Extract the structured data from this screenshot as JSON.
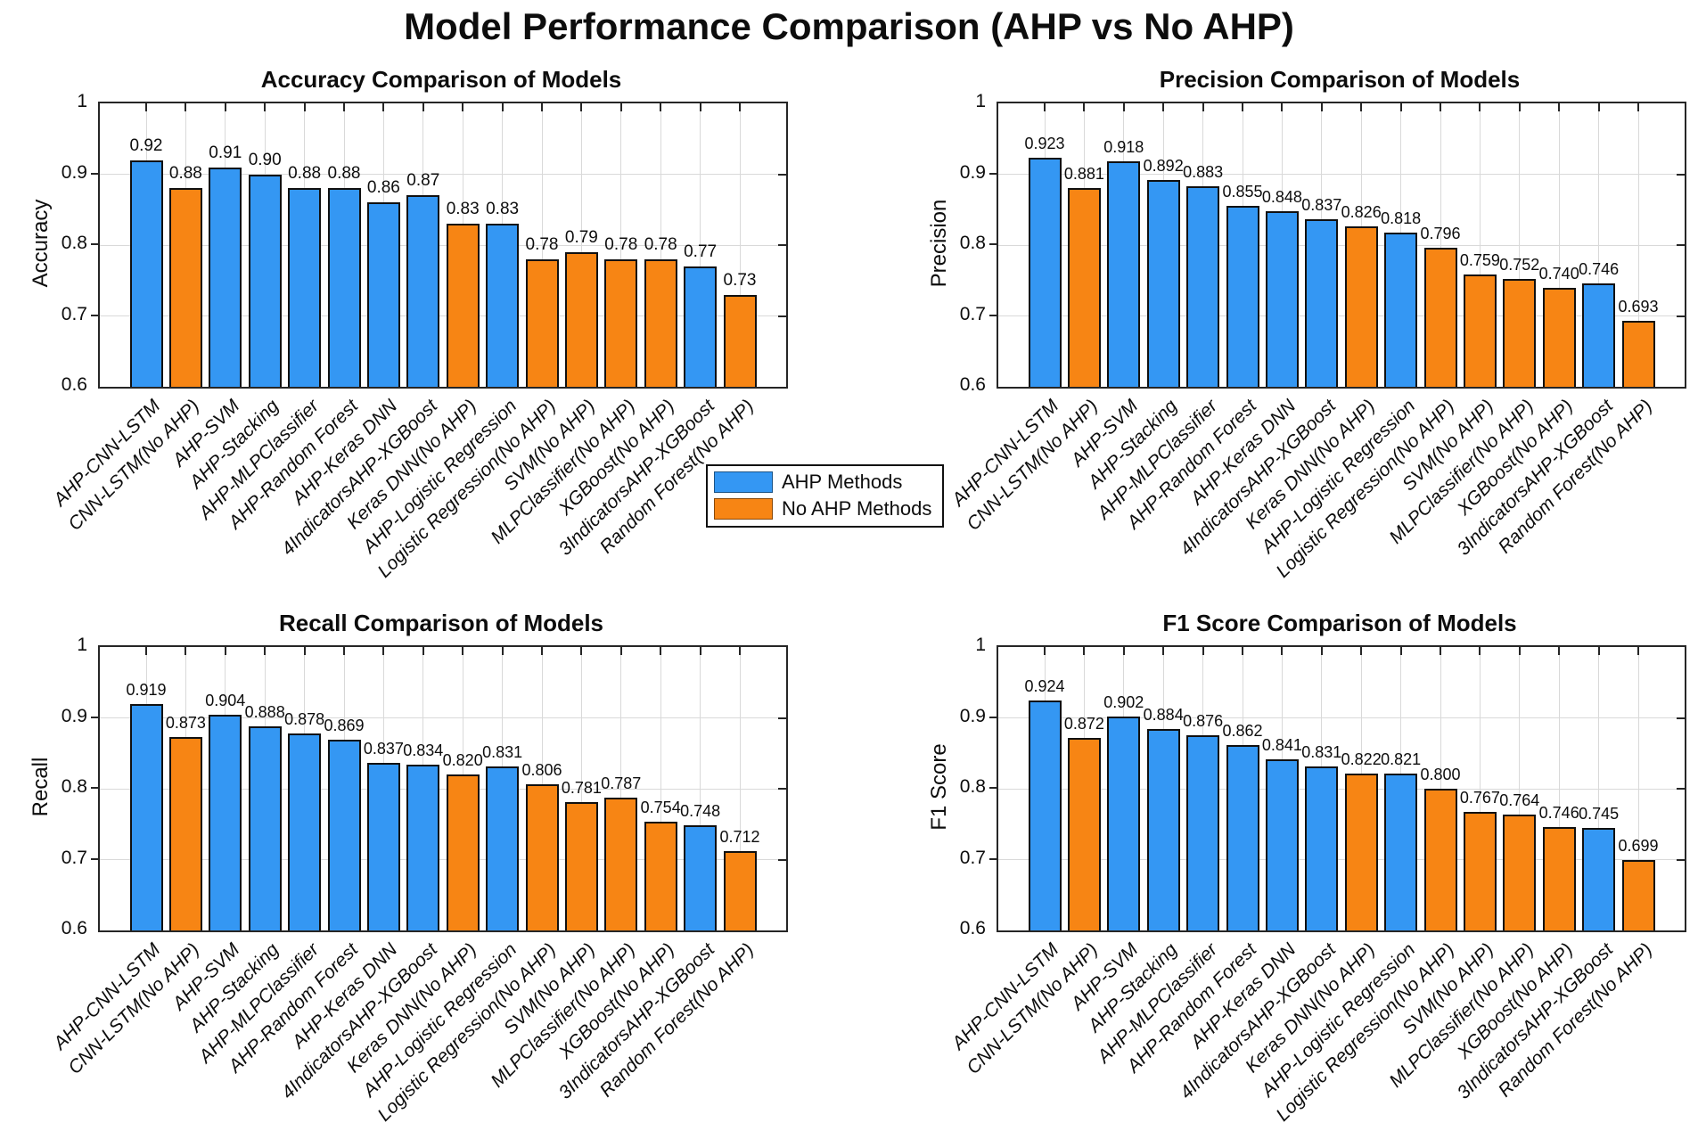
{
  "page_title": "Model Performance Comparison (AHP vs No AHP)",
  "colors": {
    "ahp": "#3497F3",
    "noahp": "#F78514",
    "bar_edge": "#101010",
    "axis": "#262626",
    "grid": "#d9d9d9",
    "text": "#0d0d0d"
  },
  "legend": {
    "items": [
      {
        "label": "AHP Methods",
        "group": "ahp"
      },
      {
        "label": "No AHP Methods",
        "group": "noahp"
      }
    ]
  },
  "categories": [
    "AHP-CNN-LSTM",
    "CNN-LSTM(No AHP)",
    "AHP-SVM",
    "AHP-Stacking",
    "AHP-MLPClassifier",
    "AHP-Random Forest",
    "AHP-Keras DNN",
    "4IndicatorsAHP-XGBoost",
    "Keras DNN(No AHP)",
    "AHP-Logistic Regression",
    "Logistic Regression(No AHP)",
    "SVM(No AHP)",
    "MLPClassifier(No AHP)",
    "XGBoost(No AHP)",
    "3IndicatorsAHP-XGBoost",
    "Random Forest(No AHP)"
  ],
  "category_groups": [
    "ahp",
    "noahp",
    "ahp",
    "ahp",
    "ahp",
    "ahp",
    "ahp",
    "ahp",
    "noahp",
    "ahp",
    "noahp",
    "noahp",
    "noahp",
    "noahp",
    "ahp",
    "noahp"
  ],
  "chart_data": [
    {
      "type": "bar",
      "title": "Accuracy Comparison of Models",
      "ylabel": "Accuracy",
      "ylim": [
        0.6,
        1.0
      ],
      "yticks": [
        1,
        0.9,
        0.8,
        0.7,
        0.6
      ],
      "ytick_labels": [
        "1",
        "0.9",
        "0.8",
        "0.7",
        "0.6"
      ],
      "grid": true,
      "values": [
        0.92,
        0.88,
        0.91,
        0.9,
        0.88,
        0.88,
        0.86,
        0.87,
        0.83,
        0.83,
        0.78,
        0.79,
        0.78,
        0.78,
        0.77,
        0.73
      ],
      "value_labels": [
        "0.92",
        "0.88",
        "0.91",
        "0.90",
        "0.88",
        "0.88",
        "0.86",
        "0.87",
        "0.83",
        "0.83",
        "0.78",
        "0.79",
        "0.78",
        "0.78",
        "0.77",
        "0.73"
      ]
    },
    {
      "type": "bar",
      "title": "Precision Comparison of Models",
      "ylabel": "Precision",
      "ylim": [
        0.6,
        1.0
      ],
      "yticks": [
        1,
        0.9,
        0.8,
        0.7,
        0.6
      ],
      "ytick_labels": [
        "1",
        "0.9",
        "0.8",
        "0.7",
        "0.6"
      ],
      "grid": true,
      "values": [
        0.923,
        0.881,
        0.918,
        0.892,
        0.883,
        0.855,
        0.848,
        0.837,
        0.826,
        0.818,
        0.796,
        0.759,
        0.752,
        0.74,
        0.746,
        0.693
      ],
      "value_labels": [
        "0.923",
        "0.881",
        "0.918",
        "0.892",
        "0.883",
        "0.855",
        "0.848",
        "0.837",
        "0.826",
        "0.818",
        "0.796",
        "0.759",
        "0.752",
        "0.740",
        "0.746",
        "0.693"
      ]
    },
    {
      "type": "bar",
      "title": "Recall Comparison of Models",
      "ylabel": "Recall",
      "ylim": [
        0.6,
        1.0
      ],
      "yticks": [
        1,
        0.9,
        0.8,
        0.7,
        0.6
      ],
      "ytick_labels": [
        "1",
        "0.9",
        "0.8",
        "0.7",
        "0.6"
      ],
      "grid": true,
      "values": [
        0.919,
        0.873,
        0.904,
        0.888,
        0.878,
        0.869,
        0.837,
        0.834,
        0.82,
        0.831,
        0.806,
        0.781,
        0.787,
        0.754,
        0.748,
        0.712
      ],
      "value_labels": [
        "0.919",
        "0.873",
        "0.904",
        "0.888",
        "0.878",
        "0.869",
        "0.837",
        "0.834",
        "0.820",
        "0.831",
        "0.806",
        "0.781",
        "0.787",
        "0.754",
        "0.748",
        "0.712"
      ]
    },
    {
      "type": "bar",
      "title": "F1 Score Comparison of Models",
      "ylabel": "F1 Score",
      "ylim": [
        0.6,
        1.0
      ],
      "yticks": [
        1,
        0.9,
        0.8,
        0.7,
        0.6
      ],
      "ytick_labels": [
        "1",
        "0.9",
        "0.8",
        "0.7",
        "0.6"
      ],
      "grid": true,
      "values": [
        0.924,
        0.872,
        0.902,
        0.884,
        0.876,
        0.862,
        0.841,
        0.831,
        0.822,
        0.821,
        0.8,
        0.767,
        0.764,
        0.746,
        0.745,
        0.699
      ],
      "value_labels": [
        "0.924",
        "0.872",
        "0.902",
        "0.884",
        "0.876",
        "0.862",
        "0.841",
        "0.831",
        "0.822",
        "0.821",
        "0.800",
        "0.767",
        "0.764",
        "0.746",
        "0.745",
        "0.699"
      ]
    }
  ]
}
